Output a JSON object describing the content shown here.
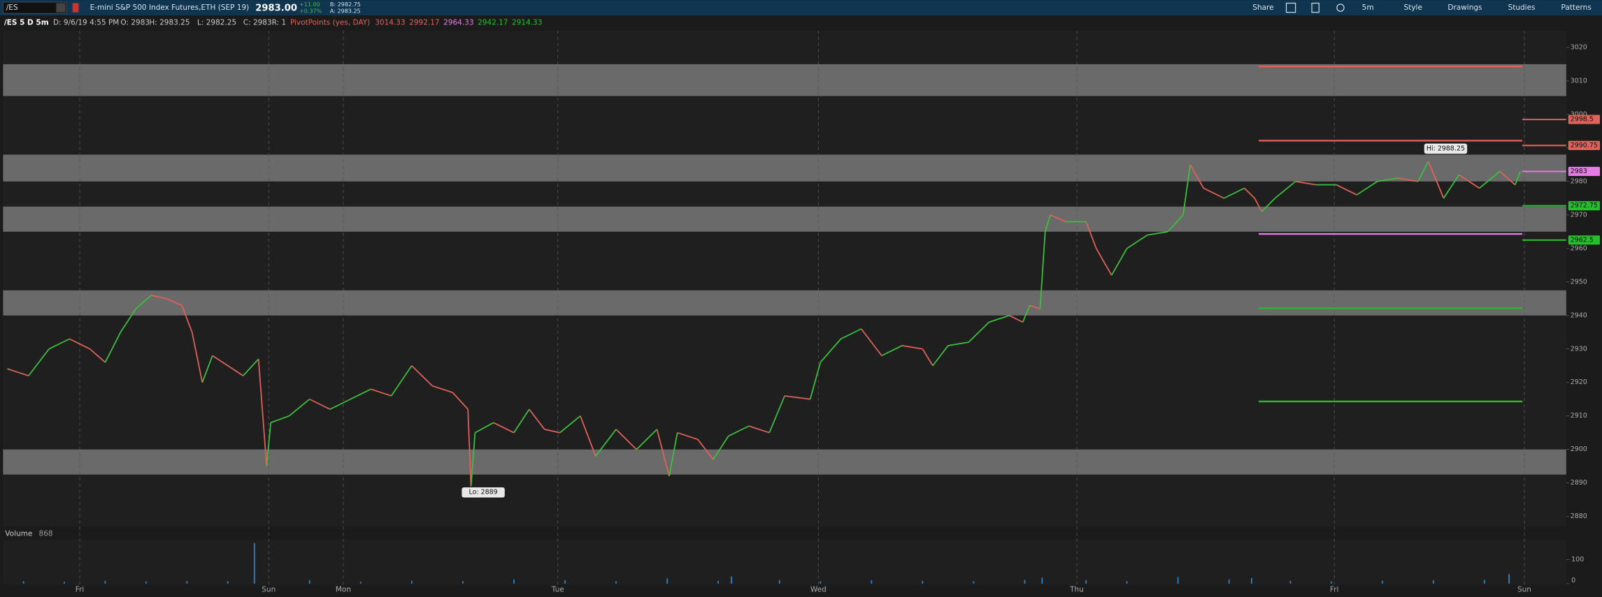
{
  "toolbar": {
    "symbol": "/ES",
    "description": "E-mini S&P 500 Index Futures,ETH (SEP 19)",
    "last": "2983.00",
    "change": "+11.00",
    "change_pct": "+0.37%",
    "bid": "B: 2982.75",
    "ask": "A: 2983.25",
    "buttons": [
      "Share",
      "5m",
      "Style",
      "Drawings",
      "Studies",
      "Patterns"
    ]
  },
  "info_bar": {
    "chart_id": "/ES 5 D 5m",
    "items": [
      "D: 9/6/19 4:55 PM",
      "O: 2983",
      "H: 2983.25",
      "L: 2982.25",
      "C: 2983",
      "R: 1"
    ],
    "study": "PivotPoints (yes, DAY)",
    "study_values": [
      {
        "value": 3014.33,
        "color": "#e0625a"
      },
      {
        "value": 2992.17,
        "color": "#e0625a"
      },
      {
        "value": 2964.33,
        "color": "#e77be6"
      },
      {
        "value": 2942.17,
        "color": "#22c02a"
      },
      {
        "value": 2914.33,
        "color": "#22c02a"
      }
    ]
  },
  "chart_data": {
    "type": "line",
    "up_color": "#3cc13c",
    "down_color": "#e0625a",
    "x": [
      5,
      25,
      45,
      65,
      85,
      100,
      115,
      130,
      145,
      160,
      175,
      185,
      195,
      205,
      220,
      235,
      250,
      258,
      262,
      280,
      300,
      320,
      340,
      360,
      380,
      400,
      420,
      440,
      455,
      458,
      462,
      480,
      500,
      515,
      530,
      545,
      565,
      580,
      600,
      620,
      640,
      652,
      660,
      680,
      695,
      710,
      730,
      750,
      765,
      790,
      800,
      820,
      840,
      860,
      880,
      900,
      910,
      925,
      945,
      965,
      985,
      998,
      1005,
      1015,
      1020,
      1025,
      1040,
      1060,
      1070,
      1085,
      1100,
      1120,
      1140,
      1155,
      1162,
      1175,
      1195,
      1215,
      1225,
      1232,
      1245,
      1265,
      1285,
      1305,
      1325,
      1345,
      1365,
      1385,
      1395,
      1410,
      1425,
      1445,
      1465,
      1480,
      1485
    ],
    "values": [
      2924,
      2922,
      2930,
      2933,
      2930,
      2926,
      2935,
      2942,
      2946,
      2945,
      2943,
      2935,
      2920,
      2928,
      2925,
      2922,
      2927,
      2895,
      2908,
      2910,
      2915,
      2912,
      2915,
      2918,
      2916,
      2925,
      2919,
      2917,
      2912,
      2889,
      2905,
      2908,
      2905,
      2912,
      2906,
      2905,
      2910,
      2898,
      2906,
      2900,
      2906,
      2892,
      2905,
      2903,
      2897,
      2904,
      2907,
      2905,
      2916,
      2915,
      2926,
      2933,
      2936,
      2928,
      2931,
      2930,
      2925,
      2931,
      2932,
      2938,
      2940,
      2938,
      2943,
      2942,
      2965,
      2970,
      2968,
      2968,
      2960,
      2952,
      2960,
      2964,
      2965,
      2970,
      2985,
      2978,
      2975,
      2978,
      2975,
      2971,
      2975,
      2980,
      2979,
      2979,
      2976,
      2980,
      2981,
      2980,
      2986,
      2975,
      2982,
      2978,
      2983,
      2979,
      2983
    ],
    "xlim": [
      0,
      1530
    ],
    "ylim": [
      2877,
      3025
    ],
    "yticks": [
      2880,
      2890,
      2900,
      2910,
      2920,
      2930,
      2940,
      2950,
      2960,
      2970,
      2980,
      2990,
      3000,
      3010,
      3020
    ],
    "xticks": [
      {
        "value": 75,
        "label": "Fri"
      },
      {
        "value": 260,
        "label": "Sun"
      },
      {
        "value": 333,
        "label": "Mon"
      },
      {
        "value": 543,
        "label": "Tue"
      },
      {
        "value": 798,
        "label": "Wed"
      },
      {
        "value": 1051,
        "label": "Thu"
      },
      {
        "value": 1303,
        "label": "Fri"
      },
      {
        "value": 1489,
        "label": "Sun"
      }
    ],
    "zones": [
      [
        3005.5,
        3015
      ],
      [
        2980,
        2988
      ],
      [
        2965,
        2972.5
      ],
      [
        2940,
        2947.5
      ],
      [
        2892.5,
        2900
      ]
    ],
    "zone_color": "#6a6a6a",
    "pivot_range": [
      1229,
      1487
    ],
    "right_levels": [
      {
        "value": 2998.5,
        "color": "#e0625a"
      },
      {
        "value": 2990.75,
        "color": "#e0625a"
      },
      {
        "value": 2983,
        "color": "#e77be6"
      },
      {
        "value": 2972.75,
        "color": "#22c02a"
      },
      {
        "value": 2962.5,
        "color": "#22c02a"
      }
    ],
    "annotations": [
      {
        "label": "Hi: 2988.25",
        "value": 2988.25,
        "x": 1412
      },
      {
        "label": "Lo: 2889",
        "value": 2889,
        "x": 470
      }
    ],
    "volume": {
      "label": "Volume",
      "last": 868,
      "color": "#2b86c9",
      "ylim": [
        0,
        175
      ],
      "yticks": [
        0,
        100
      ],
      "x": [
        20,
        60,
        100,
        140,
        180,
        220,
        246,
        300,
        350,
        400,
        450,
        500,
        550,
        600,
        650,
        700,
        713,
        760,
        800,
        850,
        900,
        950,
        1000,
        1017,
        1060,
        1100,
        1150,
        1200,
        1222,
        1260,
        1300,
        1350,
        1400,
        1450,
        1474
      ],
      "values": [
        10,
        8,
        12,
        9,
        11,
        10,
        170,
        15,
        8,
        12,
        10,
        18,
        14,
        10,
        22,
        12,
        30,
        15,
        10,
        14,
        12,
        10,
        16,
        25,
        14,
        10,
        28,
        18,
        24,
        12,
        10,
        12,
        14,
        16,
        40
      ]
    }
  }
}
